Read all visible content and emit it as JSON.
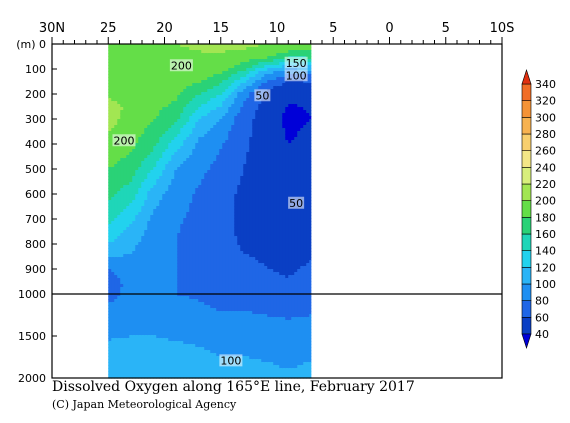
{
  "chart_data": {
    "type": "heatmap",
    "title": "Dissolved Oxygen along 165°E line, February 2017",
    "credit": "(C) Japan Meteorological Agency",
    "ylabel": "(m)",
    "x_ticks": [
      {
        "value": 30,
        "label": "30N"
      },
      {
        "value": 25,
        "label": "25"
      },
      {
        "value": 20,
        "label": "20"
      },
      {
        "value": 15,
        "label": "15"
      },
      {
        "value": 10,
        "label": "10"
      },
      {
        "value": 5,
        "label": "5"
      },
      {
        "value": 0,
        "label": "0"
      },
      {
        "value": -5,
        "label": "5"
      },
      {
        "value": -10,
        "label": "10S"
      }
    ],
    "xlim": [
      30,
      -10
    ],
    "data_x_range": [
      25,
      7
    ],
    "y_upper_ticks": [
      0,
      100,
      200,
      300,
      400,
      500,
      600,
      700,
      800,
      900,
      1000
    ],
    "y_lower_ticks": [
      1000,
      1500,
      2000
    ],
    "y_upper_range": [
      0,
      1000
    ],
    "y_lower_range": [
      1000,
      2000
    ],
    "colorbar": {
      "levels": [
        40,
        60,
        80,
        100,
        120,
        140,
        160,
        180,
        200,
        220,
        240,
        260,
        280,
        300,
        320,
        340
      ],
      "colors": [
        "#0a3fc4",
        "#1f66e6",
        "#1e8ff2",
        "#2ab4f7",
        "#22d2ee",
        "#1fd6b8",
        "#2ad277",
        "#64de48",
        "#a2e652",
        "#d8ef7c",
        "#f3e687",
        "#f8cf6e",
        "#f7b250",
        "#f59336",
        "#f16d26",
        "#e8461a"
      ],
      "low_color": "#0000d8",
      "high_color": "#e03010"
    },
    "contour_labels": [
      {
        "text": "200",
        "lat": 18.5,
        "depth": 85
      },
      {
        "text": "150",
        "lat": 8.3,
        "depth": 75
      },
      {
        "text": "100",
        "lat": 8.3,
        "depth": 125
      },
      {
        "text": "50",
        "lat": 11.3,
        "depth": 205
      },
      {
        "text": "200",
        "lat": 23.6,
        "depth": 385
      },
      {
        "text": "50",
        "lat": 8.3,
        "depth": 635
      },
      {
        "text": "100",
        "lat": 14.1,
        "depth": 1790
      }
    ],
    "profiles": [
      {
        "lat": 25.0,
        "points": [
          [
            0,
            200
          ],
          [
            80,
            198
          ],
          [
            120,
            196
          ],
          [
            200,
            196
          ],
          [
            260,
            210
          ],
          [
            320,
            205
          ],
          [
            400,
            195
          ],
          [
            500,
            180
          ],
          [
            600,
            165
          ],
          [
            700,
            145
          ],
          [
            800,
            120
          ],
          [
            900,
            80
          ],
          [
            960,
            65
          ],
          [
            1200,
            88
          ],
          [
            1500,
            98
          ],
          [
            1800,
            110
          ],
          [
            2000,
            115
          ]
        ]
      },
      {
        "lat": 23.0,
        "points": [
          [
            0,
            200
          ],
          [
            100,
            198
          ],
          [
            200,
            196
          ],
          [
            300,
            192
          ],
          [
            400,
            185
          ],
          [
            500,
            170
          ],
          [
            600,
            150
          ],
          [
            700,
            125
          ],
          [
            800,
            105
          ],
          [
            900,
            92
          ],
          [
            1000,
            88
          ],
          [
            1200,
            92
          ],
          [
            1500,
            100
          ],
          [
            1800,
            110
          ],
          [
            2000,
            115
          ]
        ]
      },
      {
        "lat": 21.0,
        "points": [
          [
            0,
            200
          ],
          [
            100,
            197
          ],
          [
            200,
            190
          ],
          [
            300,
            182
          ],
          [
            400,
            165
          ],
          [
            500,
            140
          ],
          [
            600,
            110
          ],
          [
            700,
            95
          ],
          [
            800,
            88
          ],
          [
            900,
            90
          ],
          [
            1000,
            90
          ],
          [
            1200,
            92
          ],
          [
            1500,
            100
          ],
          [
            1800,
            110
          ],
          [
            2000,
            115
          ]
        ]
      },
      {
        "lat": 19.0,
        "points": [
          [
            0,
            200
          ],
          [
            100,
            195
          ],
          [
            200,
            185
          ],
          [
            300,
            165
          ],
          [
            400,
            130
          ],
          [
            500,
            100
          ],
          [
            600,
            88
          ],
          [
            700,
            82
          ],
          [
            800,
            80
          ],
          [
            900,
            80
          ],
          [
            1000,
            80
          ],
          [
            1200,
            86
          ],
          [
            1500,
            98
          ],
          [
            1800,
            108
          ],
          [
            2000,
            112
          ]
        ]
      },
      {
        "lat": 17.0,
        "points": [
          [
            0,
            202
          ],
          [
            100,
            195
          ],
          [
            150,
            182
          ],
          [
            200,
            162
          ],
          [
            300,
            122
          ],
          [
            400,
            95
          ],
          [
            500,
            85
          ],
          [
            600,
            78
          ],
          [
            700,
            76
          ],
          [
            800,
            74
          ],
          [
            900,
            75
          ],
          [
            1000,
            78
          ],
          [
            1200,
            84
          ],
          [
            1500,
            96
          ],
          [
            1800,
            106
          ],
          [
            2000,
            110
          ]
        ]
      },
      {
        "lat": 15.0,
        "points": [
          [
            0,
            205
          ],
          [
            100,
            190
          ],
          [
            150,
            165
          ],
          [
            200,
            140
          ],
          [
            300,
            98
          ],
          [
            400,
            82
          ],
          [
            500,
            74
          ],
          [
            600,
            68
          ],
          [
            700,
            66
          ],
          [
            800,
            66
          ],
          [
            900,
            68
          ],
          [
            1000,
            72
          ],
          [
            1200,
            80
          ],
          [
            1500,
            92
          ],
          [
            1800,
            102
          ],
          [
            2000,
            108
          ]
        ]
      },
      {
        "lat": 13.0,
        "points": [
          [
            0,
            205
          ],
          [
            60,
            190
          ],
          [
            100,
            165
          ],
          [
            150,
            125
          ],
          [
            200,
            88
          ],
          [
            300,
            68
          ],
          [
            400,
            64
          ],
          [
            500,
            60
          ],
          [
            600,
            56
          ],
          [
            700,
            55
          ],
          [
            800,
            58
          ],
          [
            900,
            64
          ],
          [
            1000,
            70
          ],
          [
            1200,
            80
          ],
          [
            1500,
            92
          ],
          [
            1800,
            102
          ],
          [
            2000,
            106
          ]
        ]
      },
      {
        "lat": 11.0,
        "points": [
          [
            0,
            200
          ],
          [
            50,
            185
          ],
          [
            80,
            150
          ],
          [
            120,
            100
          ],
          [
            180,
            62
          ],
          [
            250,
            50
          ],
          [
            350,
            50
          ],
          [
            450,
            50
          ],
          [
            550,
            50
          ],
          [
            650,
            50
          ],
          [
            750,
            52
          ],
          [
            850,
            58
          ],
          [
            1000,
            66
          ],
          [
            1200,
            78
          ],
          [
            1500,
            90
          ],
          [
            1800,
            100
          ],
          [
            2000,
            104
          ]
        ]
      },
      {
        "lat": 9.0,
        "points": [
          [
            0,
            195
          ],
          [
            40,
            175
          ],
          [
            70,
            140
          ],
          [
            100,
            100
          ],
          [
            150,
            58
          ],
          [
            200,
            42
          ],
          [
            300,
            36
          ],
          [
            400,
            40
          ],
          [
            500,
            45
          ],
          [
            600,
            48
          ],
          [
            700,
            48
          ],
          [
            800,
            52
          ],
          [
            900,
            58
          ],
          [
            1000,
            64
          ],
          [
            1200,
            76
          ],
          [
            1500,
            88
          ],
          [
            1800,
            98
          ],
          [
            2000,
            102
          ]
        ]
      },
      {
        "lat": 7.0,
        "points": [
          [
            0,
            195
          ],
          [
            50,
            165
          ],
          [
            80,
            130
          ],
          [
            120,
            80
          ],
          [
            160,
            55
          ],
          [
            200,
            42
          ],
          [
            300,
            40
          ],
          [
            400,
            44
          ],
          [
            500,
            48
          ],
          [
            600,
            50
          ],
          [
            700,
            52
          ],
          [
            800,
            56
          ],
          [
            900,
            62
          ],
          [
            1000,
            66
          ],
          [
            1200,
            78
          ],
          [
            1500,
            90
          ],
          [
            1800,
            100
          ],
          [
            2000,
            104
          ]
        ]
      }
    ]
  }
}
